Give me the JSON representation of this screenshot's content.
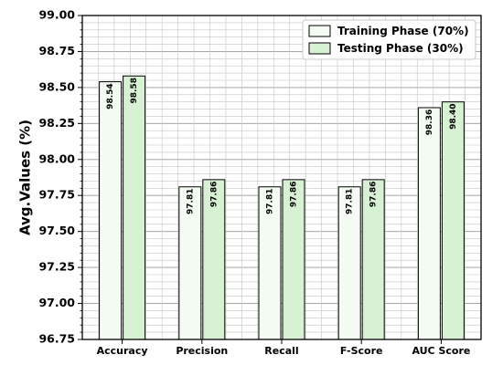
{
  "chart_data": {
    "type": "bar",
    "categories": [
      "Accuracy",
      "Precision",
      "Recall",
      "F-Score",
      "AUC Score"
    ],
    "series": [
      {
        "name": "Training Phase (70%)",
        "values": [
          98.54,
          97.81,
          97.81,
          97.81,
          98.36
        ],
        "labels": [
          "98.54",
          "97.81",
          "97.81",
          "97.81",
          "98.36"
        ],
        "color": "#f4fbf2"
      },
      {
        "name": "Testing Phase (30%)",
        "values": [
          98.58,
          97.86,
          97.86,
          97.86,
          98.4
        ],
        "labels": [
          "98.58",
          "97.86",
          "97.86",
          "97.86",
          "98.40"
        ],
        "color": "#d7f1d3"
      }
    ],
    "ylabel": "Avg.Values (%)",
    "xlabel": "",
    "ylim": [
      96.75,
      99.0
    ],
    "yticks": [
      "96.75",
      "97.00",
      "97.25",
      "97.50",
      "97.75",
      "98.00",
      "98.25",
      "98.50",
      "98.75",
      "99.00"
    ],
    "grid": true,
    "legend_position": "top-right"
  }
}
